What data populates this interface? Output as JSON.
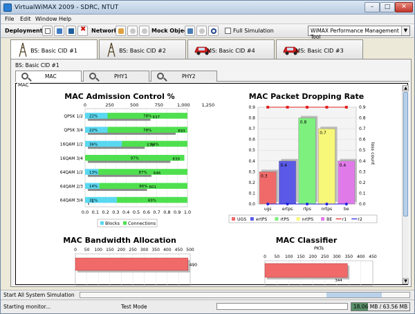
{
  "window": {
    "title": "VirtualWiMAX 2009 - SDRC, NTUT",
    "controls": {
      "minimize": "–",
      "maximize": "□",
      "close": "✕"
    }
  },
  "menu": [
    "File",
    "Edit",
    "Window",
    "Help"
  ],
  "toolbar": {
    "deployment_label": "Deployment",
    "network_label": "Network",
    "mock_object_label": "Mock Object",
    "full_simulation_label": "Full Simulation",
    "management_tool": "WiMAX Performance Management Tool"
  },
  "tabs": [
    {
      "label": "BS: Basic CID #1",
      "icon": "antenna-icon",
      "active": true
    },
    {
      "label": "BS: Basic CID #2",
      "icon": "antenna-icon",
      "active": false
    },
    {
      "label": "MS: Basic CID #4",
      "icon": "car-icon",
      "active": false
    },
    {
      "label": "MS: Basic CID #3",
      "icon": "car-icon",
      "active": false
    }
  ],
  "panel_title": "BS: Basic CID #1",
  "subtabs": [
    "MAC",
    "PHY1",
    "PHY2"
  ],
  "mac_label": "MAC",
  "colors": {
    "blocks": "#59d8f0",
    "connections": "#4fe04f",
    "red": "#f06a6a",
    "blue": "#5a5ae6",
    "green": "#7ef07e",
    "yellow": "#f7f77a",
    "magenta": "#e07ae8"
  },
  "charts": {
    "admission": {
      "title": "MAC Admission Control %",
      "legend": [
        "Blocks",
        "Connections"
      ]
    },
    "dropping": {
      "title": "MAC Packet Dropping Rate",
      "right_axis_label": "loss count",
      "legend": [
        "UGS",
        "ertPS",
        "rtPS",
        "nrtPS",
        "BE",
        "r1",
        "r2"
      ]
    },
    "bandwidth": {
      "title": "MAC Bandwidth Allocation"
    },
    "classifier": {
      "title": "MAC Classifier",
      "xlabel": "PKTs"
    }
  },
  "chart_data": [
    {
      "type": "bar",
      "title": "MAC Admission Control %",
      "orientation": "horizontal",
      "categories": [
        "QPSK 1/2",
        "QPSK 3/4",
        "16QAM 1/2",
        "16QAM 3/4",
        "64QAM 1/2",
        "64QAM 2/3",
        "64QAM 3/4"
      ],
      "series": [
        {
          "name": "Blocks",
          "values": [
            0.22,
            0.22,
            0.36,
            0.0,
            0.13,
            0.14,
            0.31
          ]
        },
        {
          "name": "Connections",
          "values": [
            0.78,
            0.78,
            0.64,
            0.97,
            0.87,
            0.86,
            0.69
          ]
        }
      ],
      "data_labels": {
        "blocks": [
          "22%",
          "22%",
          "36%",
          "",
          "13%",
          "14%",
          "31%"
        ],
        "connections": [
          "78%",
          "78%",
          "64%",
          "97%",
          "87%",
          "86%",
          "69%"
        ]
      },
      "totals": [
        637,
        893,
        578,
        839,
        646,
        601,
        1
      ],
      "bottom_axis": {
        "ticks": [
          "0.0",
          "0.1",
          "0.2",
          "0.3",
          "0.4",
          "0.5",
          "0.6",
          "0.7",
          "0.8",
          "0.9",
          "1.0"
        ],
        "range": [
          0,
          1
        ]
      },
      "top_axis": {
        "ticks": [
          "0",
          "250",
          "500",
          "750",
          "1,000",
          "1,250"
        ],
        "range": [
          0,
          1250
        ]
      }
    },
    {
      "type": "bar",
      "title": "MAC Packet Dropping Rate",
      "categories": [
        "ugs",
        "ertps",
        "rtps",
        "nrtps",
        "be"
      ],
      "series": [
        {
          "name": "UGS",
          "values": [
            0.3,
            null,
            null,
            null,
            null
          ]
        },
        {
          "name": "ertPS",
          "values": [
            null,
            0.4,
            null,
            null,
            null
          ]
        },
        {
          "name": "rtPS",
          "values": [
            null,
            null,
            0.8,
            null,
            null
          ]
        },
        {
          "name": "nrtPS",
          "values": [
            null,
            null,
            null,
            0.7,
            null
          ]
        },
        {
          "name": "BE",
          "values": [
            null,
            null,
            null,
            null,
            0.4
          ]
        }
      ],
      "line_series": [
        {
          "name": "r1",
          "values": [
            0.9,
            0.9,
            0.9,
            0.9,
            0.9
          ]
        },
        {
          "name": "r2",
          "values": [
            0.0,
            0.0,
            0.0,
            0.0,
            0.0
          ]
        }
      ],
      "data_labels": [
        "0.3",
        "0.4",
        "0.8",
        "0.7",
        "0.4"
      ],
      "left_axis": {
        "ticks": [
          "0.0",
          "0.1",
          "0.2",
          "0.3",
          "0.4",
          "0.5",
          "0.6",
          "0.7",
          "0.8",
          "0.9"
        ],
        "range": [
          0,
          0.9
        ]
      },
      "right_axis": {
        "label": "loss count",
        "ticks": [
          "0.0",
          "0.1",
          "0.2",
          "0.3",
          "0.4",
          "0.5",
          "0.6",
          "0.7",
          "0.8",
          "0.9"
        ]
      }
    },
    {
      "type": "bar",
      "title": "MAC Bandwidth Allocation",
      "orientation": "horizontal",
      "x_ticks": [
        "0",
        "50",
        "100",
        "150",
        "200",
        "250",
        "300",
        "350",
        "400",
        "450",
        "500"
      ],
      "range": [
        0,
        500
      ],
      "values": [
        490
      ],
      "data_labels": [
        "490"
      ]
    },
    {
      "type": "bar",
      "title": "MAC Classifier",
      "orientation": "horizontal",
      "xlabel": "PKTs",
      "x_ticks": [
        "0",
        "50",
        "100",
        "150",
        "200",
        "250",
        "300",
        "350",
        "400",
        "450"
      ],
      "range": [
        0,
        450
      ],
      "values": [
        344
      ],
      "data_labels": [
        "344"
      ]
    }
  ],
  "status": {
    "action": "Start All System Simulation",
    "message": "Starting monitor...",
    "mode": "Test Mode",
    "memory": "18.06 MB / 63.56 MB",
    "memory_used_fraction": 0.284
  }
}
